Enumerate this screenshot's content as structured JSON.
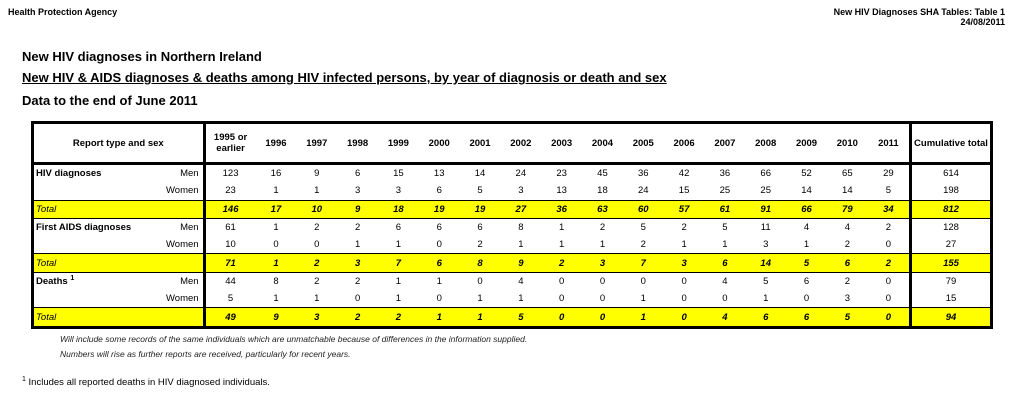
{
  "header": {
    "org": "Health Protection Agency",
    "table_ref": "New HIV Diagnoses SHA Tables: Table 1",
    "date": "24/08/2011"
  },
  "titles": {
    "main": "New HIV diagnoses in Northern Ireland",
    "sub": "New HIV & AIDS diagnoses & deaths among HIV infected persons, by year of diagnosis or death and sex",
    "period": "Data to the end of June 2011"
  },
  "table": {
    "col_header": "Report type and sex",
    "years": [
      "1995 or earlier",
      "1996",
      "1997",
      "1998",
      "1999",
      "2000",
      "2001",
      "2002",
      "2003",
      "2004",
      "2005",
      "2006",
      "2007",
      "2008",
      "2009",
      "2010",
      "2011"
    ],
    "cum_header": "Cumulative total",
    "groups": [
      {
        "label": "HIV diagnoses",
        "sup": "",
        "rows": [
          {
            "sex": "Men",
            "values": [
              "123",
              "16",
              "9",
              "6",
              "15",
              "13",
              "14",
              "24",
              "23",
              "45",
              "36",
              "42",
              "36",
              "66",
              "52",
              "65",
              "29"
            ],
            "cum": "614"
          },
          {
            "sex": "Women",
            "values": [
              "23",
              "1",
              "1",
              "3",
              "3",
              "6",
              "5",
              "3",
              "13",
              "18",
              "24",
              "15",
              "25",
              "25",
              "14",
              "14",
              "5"
            ],
            "cum": "198"
          }
        ],
        "total": {
          "label": "Total",
          "values": [
            "146",
            "17",
            "10",
            "9",
            "18",
            "19",
            "19",
            "27",
            "36",
            "63",
            "60",
            "57",
            "61",
            "91",
            "66",
            "79",
            "34"
          ],
          "cum": "812"
        }
      },
      {
        "label": "First AIDS diagnoses",
        "sup": "",
        "rows": [
          {
            "sex": "Men",
            "values": [
              "61",
              "1",
              "2",
              "2",
              "6",
              "6",
              "6",
              "8",
              "1",
              "2",
              "5",
              "2",
              "5",
              "11",
              "4",
              "4",
              "2"
            ],
            "cum": "128"
          },
          {
            "sex": "Women",
            "values": [
              "10",
              "0",
              "0",
              "1",
              "1",
              "0",
              "2",
              "1",
              "1",
              "1",
              "2",
              "1",
              "1",
              "3",
              "1",
              "2",
              "0"
            ],
            "cum": "27"
          }
        ],
        "total": {
          "label": "Total",
          "values": [
            "71",
            "1",
            "2",
            "3",
            "7",
            "6",
            "8",
            "9",
            "2",
            "3",
            "7",
            "3",
            "6",
            "14",
            "5",
            "6",
            "2"
          ],
          "cum": "155"
        }
      },
      {
        "label": "Deaths",
        "sup": "1",
        "rows": [
          {
            "sex": "Men",
            "values": [
              "44",
              "8",
              "2",
              "2",
              "1",
              "1",
              "0",
              "4",
              "0",
              "0",
              "0",
              "0",
              "4",
              "5",
              "6",
              "2",
              "0"
            ],
            "cum": "79"
          },
          {
            "sex": "Women",
            "values": [
              "5",
              "1",
              "1",
              "0",
              "1",
              "0",
              "1",
              "1",
              "0",
              "0",
              "1",
              "0",
              "0",
              "1",
              "0",
              "3",
              "0"
            ],
            "cum": "15"
          }
        ],
        "total": {
          "label": "Total",
          "values": [
            "49",
            "9",
            "3",
            "2",
            "2",
            "1",
            "1",
            "5",
            "0",
            "0",
            "1",
            "0",
            "4",
            "6",
            "6",
            "5",
            "0"
          ],
          "cum": "94"
        }
      }
    ]
  },
  "notes": [
    "Will include some records of the same individuals which are unmatchable because of differences in the information supplied.",
    "Numbers will rise as further reports are received, particularly for recent years."
  ],
  "footnote": {
    "mark": "1",
    "text": "Includes all reported deaths in HIV diagnosed individuals."
  }
}
